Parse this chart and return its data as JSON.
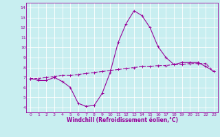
{
  "title": "",
  "xlabel": "Windchill (Refroidissement éolien,°C)",
  "ylabel": "",
  "background_color": "#c8eef0",
  "line_color": "#990099",
  "xlim": [
    -0.5,
    23.5
  ],
  "ylim": [
    3.5,
    14.5
  ],
  "yticks": [
    4,
    5,
    6,
    7,
    8,
    9,
    10,
    11,
    12,
    13,
    14
  ],
  "xticks": [
    0,
    1,
    2,
    3,
    4,
    5,
    6,
    7,
    8,
    9,
    10,
    11,
    12,
    13,
    14,
    15,
    16,
    17,
    18,
    19,
    20,
    21,
    22,
    23
  ],
  "series1_x": [
    0,
    1,
    2,
    3,
    4,
    5,
    6,
    7,
    8,
    9,
    10,
    11,
    12,
    13,
    14,
    15,
    16,
    17,
    18,
    19,
    20,
    21,
    22,
    23
  ],
  "series1_y": [
    6.9,
    6.7,
    6.7,
    7.0,
    6.6,
    6.0,
    4.4,
    4.1,
    4.2,
    5.4,
    7.5,
    10.5,
    12.4,
    13.7,
    13.2,
    12.0,
    10.1,
    9.0,
    8.3,
    8.5,
    8.5,
    8.5,
    8.1,
    7.6
  ],
  "series2_x": [
    0,
    1,
    2,
    3,
    4,
    5,
    6,
    7,
    8,
    9,
    10,
    11,
    12,
    13,
    14,
    15,
    16,
    17,
    18,
    19,
    20,
    21,
    22,
    23
  ],
  "series2_y": [
    6.9,
    6.9,
    7.0,
    7.1,
    7.2,
    7.2,
    7.3,
    7.4,
    7.5,
    7.6,
    7.7,
    7.8,
    7.9,
    8.0,
    8.1,
    8.1,
    8.2,
    8.2,
    8.3,
    8.3,
    8.4,
    8.4,
    8.4,
    7.6
  ],
  "grid_color": "#ffffff",
  "tick_label_color": "#990099",
  "tick_label_size": 4.5,
  "xlabel_size": 5.5,
  "marker_size": 2.5,
  "line_width": 0.8
}
